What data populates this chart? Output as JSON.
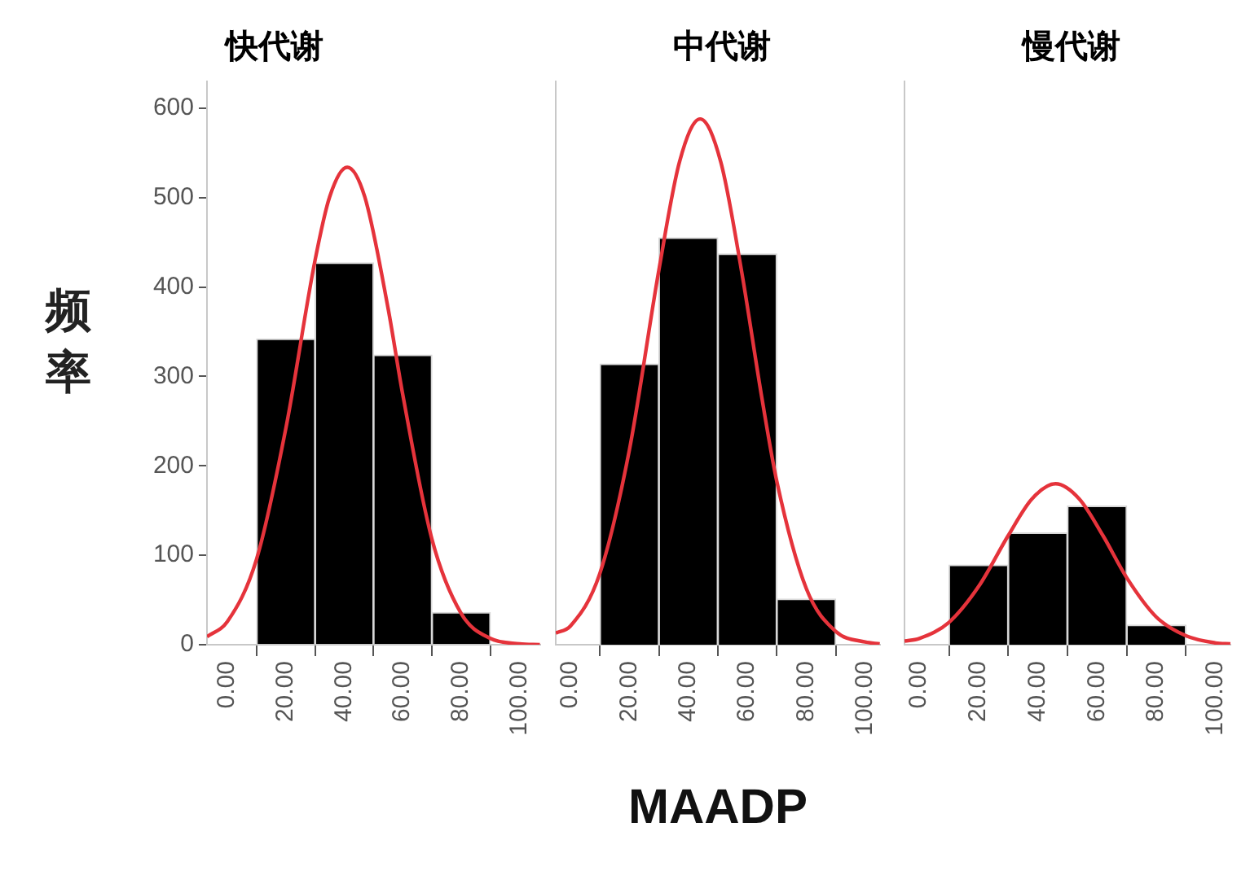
{
  "chart_data": [
    {
      "type": "histogram",
      "title": "快代谢",
      "ylabel": "频率",
      "bins": [
        10,
        30,
        50,
        70,
        90
      ],
      "values": [
        342,
        427,
        324,
        36
      ],
      "color": "#000000",
      "series": [
        {
          "type": "line",
          "color": "#e5333b",
          "x": [
            -7,
            0,
            10,
            20,
            30,
            35,
            41,
            47,
            55,
            60,
            70,
            80,
            90,
            100,
            107
          ],
          "values": [
            9,
            26,
            96,
            242,
            430,
            501,
            534,
            501,
            376,
            280,
            118,
            35,
            7,
            1,
            0
          ]
        }
      ],
      "xlim": [
        -7,
        107
      ],
      "xticks": [
        {
          "value": 0,
          "label": "0.00"
        },
        {
          "value": 20,
          "label": "20.00"
        },
        {
          "value": 40,
          "label": "40.00"
        },
        {
          "value": 60,
          "label": "60.00"
        },
        {
          "value": 80,
          "label": "80.00"
        },
        {
          "value": 100,
          "label": "100.00"
        }
      ],
      "ylim": [
        0,
        630
      ],
      "yticks": [
        0,
        100,
        200,
        300,
        400,
        500,
        600
      ]
    },
    {
      "type": "histogram",
      "title": "中代谢",
      "xlabel": "MAADP",
      "bins": [
        10,
        30,
        50,
        70,
        90
      ],
      "values": [
        314,
        455,
        437,
        51
      ],
      "color": "#000000",
      "series": [
        {
          "type": "line",
          "color": "#e5333b",
          "x": [
            -5,
            0,
            10,
            20,
            30,
            37,
            44,
            51,
            58,
            65,
            70,
            80,
            90,
            100,
            105
          ],
          "values": [
            13,
            21,
            80,
            218,
            419,
            540,
            588,
            540,
            419,
            275,
            183,
            63,
            15,
            3,
            1
          ]
        }
      ],
      "xlim": [
        -5,
        105
      ],
      "xticks": [
        {
          "value": 0,
          "label": "0.00"
        },
        {
          "value": 20,
          "label": "20.00"
        },
        {
          "value": 40,
          "label": "40.00"
        },
        {
          "value": 60,
          "label": "60.00"
        },
        {
          "value": 80,
          "label": "80.00"
        },
        {
          "value": 100,
          "label": "100.00"
        }
      ],
      "ylim": [
        0,
        630
      ],
      "yticks": [
        0,
        100,
        200,
        300,
        400,
        500,
        600
      ],
      "tick_labels": "x"
    },
    {
      "type": "histogram",
      "title": "慢代谢",
      "bins": [
        10,
        30,
        50,
        70,
        90
      ],
      "values": [
        89,
        125,
        155,
        22
      ],
      "color": "#000000",
      "series": [
        {
          "type": "line",
          "color": "#e5333b",
          "x": [
            -5,
            0,
            10,
            20,
            30,
            38,
            46,
            54,
            62,
            70,
            80,
            90,
            100,
            105
          ],
          "values": [
            4,
            7,
            25,
            65,
            122,
            163,
            180,
            163,
            122,
            75,
            31,
            10,
            2,
            1
          ]
        }
      ],
      "xlim": [
        -5,
        105
      ],
      "xticks": [
        {
          "value": 0,
          "label": "0.00"
        },
        {
          "value": 20,
          "label": "20.00"
        },
        {
          "value": 40,
          "label": "40.00"
        },
        {
          "value": 60,
          "label": "60.00"
        },
        {
          "value": 80,
          "label": "80.00"
        },
        {
          "value": 100,
          "label": "100.00"
        }
      ],
      "ylim": [
        0,
        630
      ],
      "yticks": [
        0,
        100,
        200,
        300,
        400,
        500,
        600
      ],
      "tick_labels": "x"
    }
  ]
}
